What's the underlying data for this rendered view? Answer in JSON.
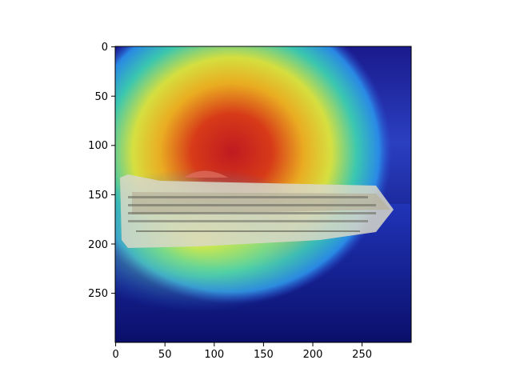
{
  "figure": {
    "type": "image-with-axes",
    "image_description_tag": "cruise-ship-heatmap-overlay",
    "colormap": "jet",
    "x_axis": {
      "range": [
        0,
        300
      ],
      "ticks": [
        0,
        50,
        100,
        150,
        200,
        250
      ]
    },
    "y_axis": {
      "range": [
        0,
        300
      ],
      "inverted": true,
      "ticks": [
        0,
        50,
        100,
        150,
        200,
        250
      ]
    },
    "heatmap_peak": {
      "x": 100,
      "y": 85
    }
  }
}
